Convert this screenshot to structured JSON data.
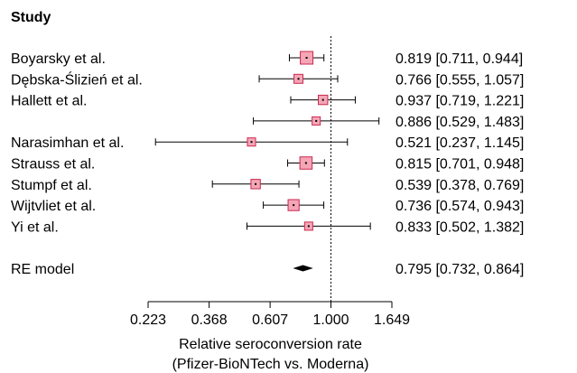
{
  "chart_data": {
    "type": "forest",
    "header": "Study",
    "studies": [
      {
        "label": "Boyarsky et al.",
        "estimate": 0.819,
        "lower": 0.711,
        "upper": 0.944,
        "ci_text": "0.819 [0.711, 0.944]",
        "weight": 1.0
      },
      {
        "label": "Dębska-Ślizień et al.",
        "estimate": 0.766,
        "lower": 0.555,
        "upper": 1.057,
        "ci_text": "0.766 [0.555, 1.057]",
        "weight": 0.55
      },
      {
        "label": "Hallett et al.",
        "estimate": 0.937,
        "lower": 0.719,
        "upper": 1.221,
        "ci_text": "0.937 [0.719, 1.221]",
        "weight": 0.6
      },
      {
        "label": "",
        "estimate": 0.886,
        "lower": 0.529,
        "upper": 1.483,
        "ci_text": "0.886 [0.529, 1.483]",
        "weight": 0.45
      },
      {
        "label": "Narasimhan et al.",
        "estimate": 0.521,
        "lower": 0.237,
        "upper": 1.145,
        "ci_text": "0.521 [0.237, 1.145]",
        "weight": 0.45
      },
      {
        "label": "Strauss et al.",
        "estimate": 0.815,
        "lower": 0.701,
        "upper": 0.948,
        "ci_text": "0.815 [0.701, 0.948]",
        "weight": 0.95
      },
      {
        "label": "Stumpf et al.",
        "estimate": 0.539,
        "lower": 0.378,
        "upper": 0.769,
        "ci_text": "0.539 [0.378, 0.769]",
        "weight": 0.6
      },
      {
        "label": "Wijtvliet et al.",
        "estimate": 0.736,
        "lower": 0.574,
        "upper": 0.943,
        "ci_text": "0.736 [0.574, 0.943]",
        "weight": 0.8
      },
      {
        "label": "Yi et al.",
        "estimate": 0.833,
        "lower": 0.502,
        "upper": 1.382,
        "ci_text": "0.833 [0.502, 1.382]",
        "weight": 0.45
      }
    ],
    "summary": {
      "label": "RE model",
      "estimate": 0.795,
      "lower": 0.732,
      "upper": 0.864,
      "ci_text": "0.795 [0.732, 0.864]"
    },
    "x_scale": "log",
    "x_ticks": [
      0.223,
      0.368,
      0.607,
      1.0,
      1.649
    ],
    "x_tick_labels": [
      "0.223",
      "0.368",
      "0.607",
      "1.000",
      "1.649"
    ],
    "xlim": [
      0.223,
      1.649
    ],
    "reference_line": 1.0,
    "xlabel": [
      "Relative seroconversion rate",
      "(Pfizer-BioNTech vs. Moderna)"
    ],
    "colors": {
      "marker_fill": "#f4a6b7",
      "marker_stroke": "#c8294f",
      "line": "#000000",
      "text": "#000000"
    }
  }
}
